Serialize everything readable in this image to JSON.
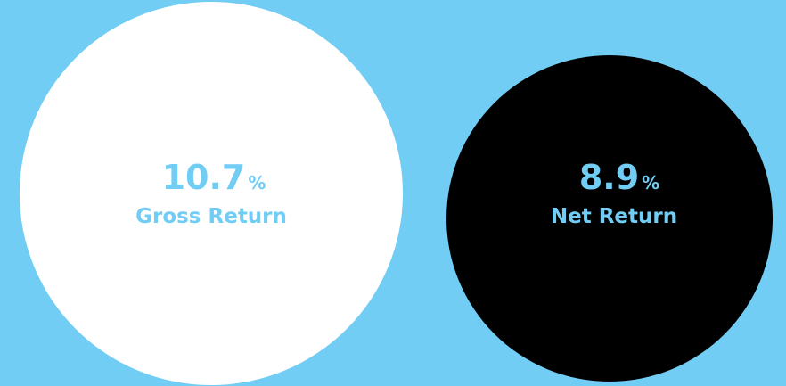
{
  "items": [
    {
      "value": 10.7,
      "unit": "%",
      "label": "Gross Return"
    },
    {
      "value": 8.9,
      "unit": "%",
      "label": "Net Return"
    }
  ]
}
